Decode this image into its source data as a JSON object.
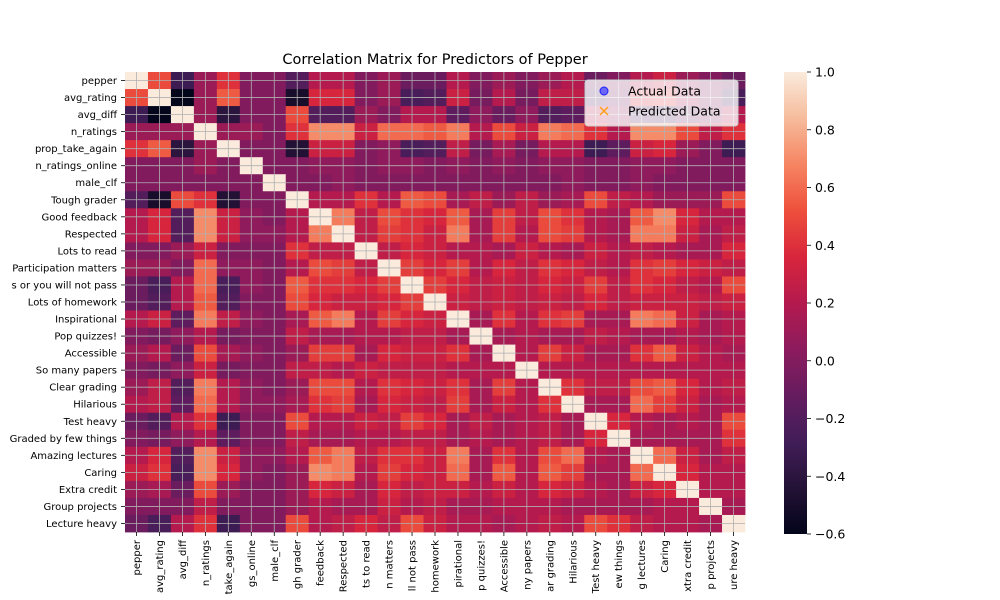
{
  "chart_data": {
    "type": "heatmap",
    "title": "Correlation Matrix for Predictors of Pepper",
    "variables": [
      "pepper",
      "avg_rating",
      "avg_diff",
      "n_ratings",
      "prop_take_again",
      "n_ratings_online",
      "male_clf",
      "Tough grader",
      "Good feedback",
      "Respected",
      "Lots to read",
      "Participation matters",
      "Don't skip class or you will not pass",
      "Lots of homework",
      "Inspirational",
      "Pop quizzes!",
      "Accessible",
      "So many papers",
      "Clear grading",
      "Hilarious",
      "Test heavy",
      "Graded by few things",
      "Amazing lectures",
      "Caring",
      "Extra credit",
      "Group projects",
      "Lecture heavy"
    ],
    "y_tick_labels": [
      "pepper",
      "avg_rating",
      "avg_diff",
      "n_ratings",
      "prop_take_again",
      "n_ratings_online",
      "male_clf",
      "Tough grader",
      "Good feedback",
      "Respected",
      "Lots to read",
      "Participation matters",
      "s or you will not pass",
      "Lots of homework",
      "Inspirational",
      "Pop quizzes!",
      "Accessible",
      "So many papers",
      "Clear grading",
      "Hilarious",
      "Test heavy",
      "Graded by few things",
      "Amazing lectures",
      "Caring",
      "Extra credit",
      "Group projects",
      "Lecture heavy"
    ],
    "x_tick_labels": [
      "pepper",
      "avg_rating",
      "avg_diff",
      "n_ratings",
      "take_again",
      "gs_online",
      "male_clf",
      "gh grader",
      "feedback",
      "Respected",
      "ts to read",
      "n matters",
      "ll not pass",
      "homework",
      "pirational",
      "p quizzes!",
      "Accessible",
      "ny papers",
      "ar grading",
      "Hilarious",
      "Test heavy",
      "ew things",
      "g lectures",
      "Caring",
      "xtra credit",
      "p projects",
      "ure heavy"
    ],
    "colorbar": {
      "min": -0.6,
      "max": 1.0,
      "ticks": [
        "1.0",
        "0.8",
        "0.6",
        "0.4",
        "0.2",
        "0.0",
        "−0.2",
        "−0.4",
        "−0.6"
      ],
      "colormap": "rocket"
    },
    "legend": {
      "placement": "top-right",
      "entries": [
        "Actual Data",
        "Predicted Data"
      ],
      "actual_color": "#1f1fff",
      "predicted_color": "#ff9f1c"
    },
    "grid": true,
    "matrix": [
      [
        1.0,
        0.5,
        -0.3,
        0.1,
        0.4,
        0.0,
        0.0,
        -0.2,
        0.2,
        0.2,
        0.0,
        0.1,
        -0.1,
        -0.1,
        0.2,
        0.0,
        0.1,
        0.0,
        0.1,
        0.2,
        -0.1,
        0.0,
        0.2,
        0.3,
        0.1,
        0.0,
        -0.1
      ],
      [
        0.5,
        1.0,
        -0.6,
        0.1,
        0.55,
        0.0,
        0.0,
        -0.5,
        0.35,
        0.35,
        0.0,
        0.1,
        -0.25,
        -0.2,
        0.3,
        -0.05,
        0.2,
        -0.05,
        0.25,
        0.25,
        -0.2,
        -0.05,
        0.35,
        0.4,
        0.15,
        0.0,
        -0.25
      ],
      [
        -0.3,
        -0.6,
        1.0,
        0.1,
        -0.4,
        0.0,
        0.0,
        0.5,
        -0.2,
        -0.2,
        0.1,
        0.0,
        0.2,
        0.2,
        -0.15,
        0.05,
        -0.1,
        0.05,
        -0.2,
        -0.15,
        0.2,
        0.05,
        -0.2,
        -0.25,
        -0.1,
        0.0,
        0.2
      ],
      [
        0.1,
        0.1,
        0.1,
        1.0,
        0.1,
        0.1,
        0.0,
        0.4,
        0.7,
        0.7,
        0.3,
        0.6,
        0.6,
        0.55,
        0.65,
        0.2,
        0.5,
        0.3,
        0.65,
        0.6,
        0.4,
        0.2,
        0.7,
        0.7,
        0.5,
        0.25,
        0.4
      ],
      [
        0.4,
        0.55,
        -0.4,
        0.1,
        1.0,
        0.0,
        0.0,
        -0.45,
        0.3,
        0.3,
        0.0,
        0.05,
        -0.25,
        -0.2,
        0.25,
        -0.05,
        0.15,
        -0.05,
        0.2,
        0.2,
        -0.3,
        -0.15,
        0.3,
        0.35,
        0.1,
        0.0,
        -0.3
      ],
      [
        0.0,
        0.0,
        0.0,
        0.1,
        0.0,
        1.0,
        0.0,
        0.0,
        0.05,
        0.05,
        0.0,
        0.05,
        0.05,
        0.0,
        0.05,
        0.0,
        0.05,
        0.0,
        0.05,
        0.05,
        0.0,
        0.0,
        0.05,
        0.05,
        0.0,
        0.0,
        0.0
      ],
      [
        0.0,
        0.0,
        0.0,
        0.0,
        0.0,
        0.0,
        1.0,
        0.0,
        0.0,
        0.05,
        0.0,
        0.0,
        0.0,
        0.0,
        0.0,
        0.0,
        0.0,
        0.0,
        0.0,
        0.05,
        0.0,
        0.0,
        0.05,
        0.0,
        0.0,
        0.0,
        0.0
      ],
      [
        -0.2,
        -0.5,
        0.5,
        0.4,
        -0.45,
        0.0,
        0.0,
        1.0,
        0.2,
        0.2,
        0.4,
        0.2,
        0.55,
        0.5,
        0.15,
        0.25,
        0.1,
        0.25,
        0.1,
        0.15,
        0.5,
        0.25,
        0.2,
        0.1,
        0.1,
        0.1,
        0.5
      ],
      [
        0.2,
        0.35,
        -0.2,
        0.7,
        0.3,
        0.05,
        0.0,
        0.2,
        1.0,
        0.65,
        0.25,
        0.5,
        0.4,
        0.35,
        0.55,
        0.15,
        0.45,
        0.25,
        0.5,
        0.4,
        0.2,
        0.15,
        0.55,
        0.7,
        0.35,
        0.2,
        0.2
      ],
      [
        0.2,
        0.35,
        -0.2,
        0.7,
        0.3,
        0.05,
        0.05,
        0.2,
        0.65,
        1.0,
        0.25,
        0.45,
        0.4,
        0.3,
        0.65,
        0.15,
        0.45,
        0.2,
        0.5,
        0.45,
        0.2,
        0.15,
        0.65,
        0.65,
        0.3,
        0.15,
        0.25
      ],
      [
        0.0,
        0.0,
        0.1,
        0.3,
        0.0,
        0.0,
        0.0,
        0.4,
        0.25,
        0.25,
        1.0,
        0.25,
        0.35,
        0.3,
        0.2,
        0.2,
        0.15,
        0.3,
        0.2,
        0.15,
        0.3,
        0.2,
        0.25,
        0.2,
        0.15,
        0.15,
        0.35
      ],
      [
        0.1,
        0.1,
        0.0,
        0.6,
        0.05,
        0.05,
        0.0,
        0.2,
        0.5,
        0.45,
        0.25,
        1.0,
        0.45,
        0.35,
        0.45,
        0.2,
        0.35,
        0.25,
        0.4,
        0.35,
        0.25,
        0.2,
        0.4,
        0.45,
        0.35,
        0.3,
        0.25
      ],
      [
        -0.1,
        -0.25,
        0.2,
        0.6,
        -0.25,
        0.05,
        0.0,
        0.55,
        0.4,
        0.4,
        0.35,
        0.45,
        1.0,
        0.45,
        0.35,
        0.25,
        0.3,
        0.25,
        0.35,
        0.3,
        0.45,
        0.25,
        0.4,
        0.35,
        0.25,
        0.2,
        0.5
      ],
      [
        -0.1,
        -0.2,
        0.2,
        0.55,
        -0.2,
        0.0,
        0.0,
        0.5,
        0.35,
        0.3,
        0.3,
        0.35,
        0.45,
        1.0,
        0.3,
        0.25,
        0.3,
        0.25,
        0.3,
        0.25,
        0.35,
        0.25,
        0.3,
        0.3,
        0.3,
        0.25,
        0.3
      ],
      [
        0.2,
        0.3,
        -0.15,
        0.65,
        0.25,
        0.05,
        0.0,
        0.15,
        0.55,
        0.65,
        0.2,
        0.45,
        0.35,
        0.3,
        1.0,
        0.15,
        0.4,
        0.2,
        0.4,
        0.45,
        0.15,
        0.15,
        0.65,
        0.6,
        0.3,
        0.15,
        0.2
      ],
      [
        0.0,
        -0.05,
        0.05,
        0.2,
        -0.05,
        0.0,
        0.0,
        0.25,
        0.15,
        0.15,
        0.2,
        0.2,
        0.25,
        0.25,
        0.15,
        1.0,
        0.15,
        0.2,
        0.15,
        0.15,
        0.25,
        0.2,
        0.15,
        0.15,
        0.2,
        0.15,
        0.2
      ],
      [
        0.1,
        0.2,
        -0.1,
        0.5,
        0.15,
        0.05,
        0.0,
        0.1,
        0.45,
        0.45,
        0.15,
        0.35,
        0.3,
        0.3,
        0.4,
        0.15,
        1.0,
        0.2,
        0.45,
        0.3,
        0.15,
        0.15,
        0.4,
        0.55,
        0.3,
        0.2,
        0.15
      ],
      [
        0.0,
        -0.05,
        0.05,
        0.3,
        -0.05,
        0.0,
        0.0,
        0.25,
        0.25,
        0.2,
        0.3,
        0.25,
        0.25,
        0.25,
        0.2,
        0.2,
        0.2,
        1.0,
        0.2,
        0.2,
        0.2,
        0.2,
        0.2,
        0.2,
        0.2,
        0.2,
        0.2
      ],
      [
        0.1,
        0.25,
        -0.2,
        0.65,
        0.2,
        0.05,
        0.0,
        0.1,
        0.5,
        0.5,
        0.2,
        0.4,
        0.35,
        0.3,
        0.4,
        0.15,
        0.45,
        0.2,
        1.0,
        0.4,
        0.25,
        0.25,
        0.5,
        0.55,
        0.35,
        0.2,
        0.25
      ],
      [
        0.2,
        0.25,
        -0.15,
        0.6,
        0.2,
        0.05,
        0.05,
        0.15,
        0.4,
        0.45,
        0.15,
        0.35,
        0.3,
        0.25,
        0.45,
        0.15,
        0.3,
        0.2,
        0.4,
        1.0,
        0.15,
        0.15,
        0.6,
        0.45,
        0.3,
        0.15,
        0.2
      ],
      [
        -0.1,
        -0.2,
        0.2,
        0.4,
        -0.3,
        0.0,
        0.0,
        0.5,
        0.2,
        0.2,
        0.3,
        0.25,
        0.45,
        0.35,
        0.15,
        0.25,
        0.15,
        0.2,
        0.25,
        0.15,
        1.0,
        0.35,
        0.2,
        0.15,
        0.2,
        0.15,
        0.5
      ],
      [
        0.0,
        -0.05,
        0.05,
        0.2,
        -0.15,
        0.0,
        0.0,
        0.25,
        0.15,
        0.15,
        0.2,
        0.2,
        0.25,
        0.25,
        0.15,
        0.2,
        0.15,
        0.2,
        0.25,
        0.15,
        0.35,
        1.0,
        0.15,
        0.15,
        0.15,
        0.15,
        0.4
      ],
      [
        0.2,
        0.35,
        -0.2,
        0.7,
        0.3,
        0.05,
        0.05,
        0.2,
        0.55,
        0.65,
        0.25,
        0.4,
        0.4,
        0.3,
        0.65,
        0.15,
        0.4,
        0.2,
        0.5,
        0.6,
        0.2,
        0.15,
        1.0,
        0.6,
        0.3,
        0.15,
        0.25
      ],
      [
        0.3,
        0.4,
        -0.25,
        0.7,
        0.35,
        0.05,
        0.0,
        0.1,
        0.7,
        0.65,
        0.2,
        0.45,
        0.35,
        0.3,
        0.6,
        0.15,
        0.55,
        0.2,
        0.55,
        0.45,
        0.15,
        0.15,
        0.6,
        1.0,
        0.35,
        0.2,
        0.2
      ],
      [
        0.1,
        0.15,
        -0.1,
        0.5,
        0.1,
        0.0,
        0.0,
        0.1,
        0.35,
        0.3,
        0.15,
        0.35,
        0.25,
        0.3,
        0.3,
        0.2,
        0.3,
        0.2,
        0.35,
        0.3,
        0.2,
        0.15,
        0.3,
        0.35,
        1.0,
        0.2,
        0.2
      ],
      [
        0.0,
        0.0,
        0.0,
        0.25,
        0.0,
        0.0,
        0.0,
        0.1,
        0.2,
        0.15,
        0.15,
        0.3,
        0.2,
        0.25,
        0.15,
        0.15,
        0.2,
        0.2,
        0.2,
        0.15,
        0.15,
        0.15,
        0.15,
        0.2,
        0.2,
        1.0,
        0.15
      ],
      [
        -0.1,
        -0.25,
        0.2,
        0.4,
        -0.3,
        0.0,
        0.0,
        0.5,
        0.2,
        0.25,
        0.35,
        0.25,
        0.5,
        0.3,
        0.2,
        0.2,
        0.15,
        0.2,
        0.25,
        0.2,
        0.5,
        0.4,
        0.25,
        0.2,
        0.2,
        0.15,
        1.0
      ]
    ]
  }
}
